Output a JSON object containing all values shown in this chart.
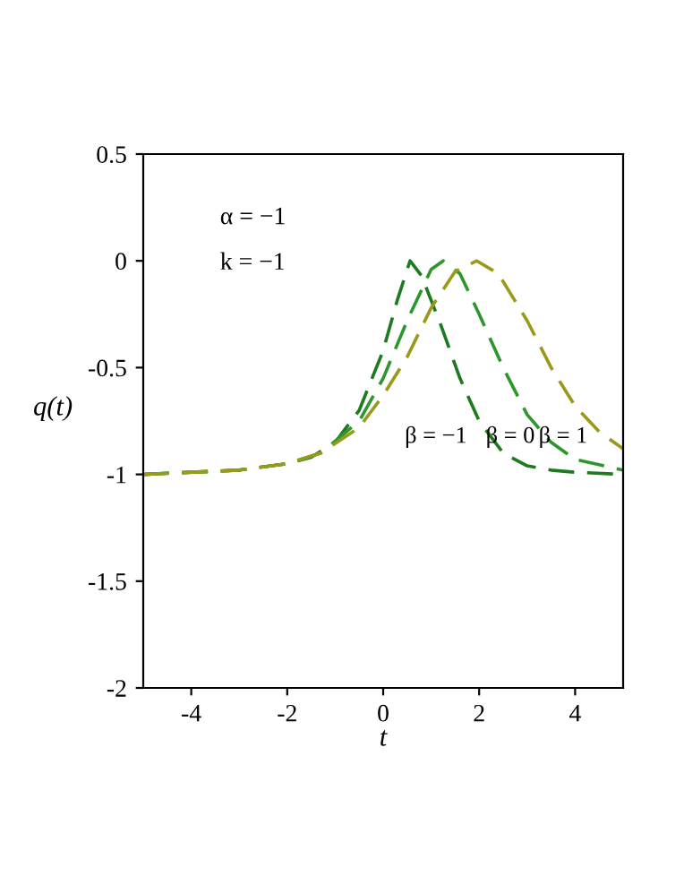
{
  "chart_data": {
    "type": "line",
    "xlabel": "t",
    "ylabel": "q(t)",
    "xlim": [
      -5,
      5
    ],
    "ylim": [
      -2,
      0.5
    ],
    "xticks": [
      -4,
      -2,
      0,
      2,
      4
    ],
    "yticks": [
      -2,
      -1.5,
      -1,
      -0.5,
      0,
      0.5
    ],
    "grid": false,
    "legend": false,
    "line_style": "dashed",
    "marker": "none",
    "annotations": [
      "α = −1",
      "k = −1",
      "β = −1",
      "β = 0",
      "β = 1"
    ],
    "series": [
      {
        "color": "#1f7a1f",
        "x": [
          -5,
          -4,
          -3,
          -2,
          -1.5,
          -1,
          -0.5,
          0,
          0.3,
          0.56,
          0.8,
          1.2,
          1.6,
          2,
          2.5,
          3,
          3.5,
          4,
          5
        ],
        "values": [
          -1,
          -0.99,
          -0.98,
          -0.95,
          -0.92,
          -0.85,
          -0.7,
          -0.42,
          -0.18,
          0,
          -0.07,
          -0.3,
          -0.55,
          -0.75,
          -0.9,
          -0.96,
          -0.98,
          -0.99,
          -1
        ]
      },
      {
        "color": "#2e962e",
        "x": [
          -5,
          -3,
          -2,
          -1.3,
          -0.5,
          0,
          0.5,
          1,
          1.25,
          1.6,
          2,
          2.5,
          3,
          3.5,
          4,
          5
        ],
        "values": [
          -1,
          -0.98,
          -0.95,
          -0.9,
          -0.75,
          -0.55,
          -0.28,
          -0.04,
          0,
          -0.06,
          -0.25,
          -0.5,
          -0.72,
          -0.85,
          -0.93,
          -0.98
        ]
      },
      {
        "color": "#9a9a1a",
        "x": [
          -5,
          -3,
          -2,
          -1.3,
          -0.5,
          0,
          0.5,
          1,
          1.5,
          1.95,
          2.4,
          3,
          3.5,
          4,
          4.5,
          5
        ],
        "values": [
          -1,
          -0.98,
          -0.95,
          -0.9,
          -0.78,
          -0.63,
          -0.45,
          -0.22,
          -0.05,
          0,
          -0.06,
          -0.28,
          -0.5,
          -0.68,
          -0.8,
          -0.88
        ]
      }
    ]
  }
}
